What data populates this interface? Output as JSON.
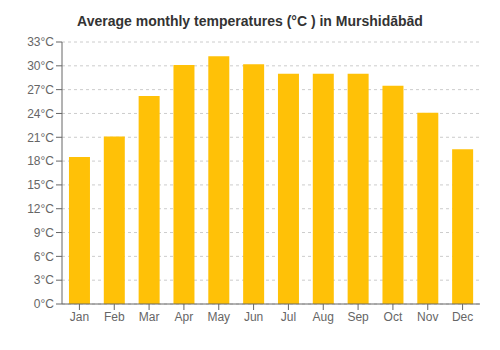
{
  "chart_data": {
    "type": "bar",
    "title": "Average monthly temperatures (°C ) in Murshidābād",
    "categories": [
      "Jan",
      "Feb",
      "Mar",
      "Apr",
      "May",
      "Jun",
      "Jul",
      "Aug",
      "Sep",
      "Oct",
      "Nov",
      "Dec"
    ],
    "values": [
      18.5,
      21.1,
      26.2,
      30.1,
      31.2,
      30.2,
      29.0,
      29.0,
      29.0,
      27.5,
      24.1,
      19.5
    ],
    "color": "#FFC107",
    "ylim": [
      0,
      33
    ],
    "yticks": [
      {
        "value": 0,
        "label": "0°C"
      },
      {
        "value": 3,
        "label": "3°C"
      },
      {
        "value": 6,
        "label": "6°C"
      },
      {
        "value": 9,
        "label": "9°C"
      },
      {
        "value": 12,
        "label": "12°C"
      },
      {
        "value": 15,
        "label": "15°C"
      },
      {
        "value": 18,
        "label": "18°C"
      },
      {
        "value": 21,
        "label": "21°C"
      },
      {
        "value": 24,
        "label": "24°C"
      },
      {
        "value": 27,
        "label": "27°C"
      },
      {
        "value": 30,
        "label": "30°C"
      },
      {
        "value": 33,
        "label": "33°C"
      }
    ],
    "grid": true
  }
}
